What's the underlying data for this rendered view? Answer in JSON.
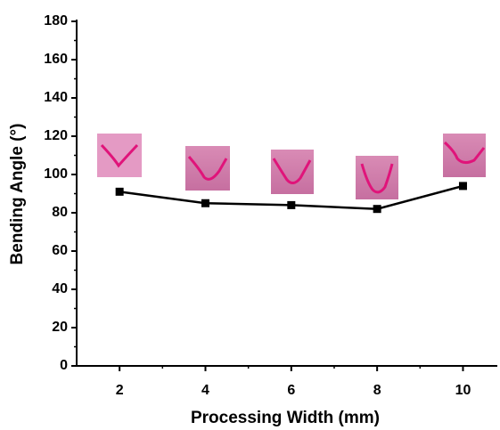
{
  "chart_data": {
    "type": "line",
    "x_label": "Processing Width (mm)",
    "y_label": "Bending Angle (°)",
    "x": [
      2,
      4,
      6,
      8,
      10
    ],
    "values": [
      91,
      85,
      84,
      82,
      94
    ],
    "color": "#000000",
    "xlim": [
      1,
      10.8
    ],
    "xticks": [
      2,
      4,
      6,
      8,
      10
    ],
    "ylim": [
      0,
      180
    ],
    "yticks": [
      0,
      20,
      40,
      60,
      80,
      100,
      120,
      140,
      160,
      180
    ]
  }
}
